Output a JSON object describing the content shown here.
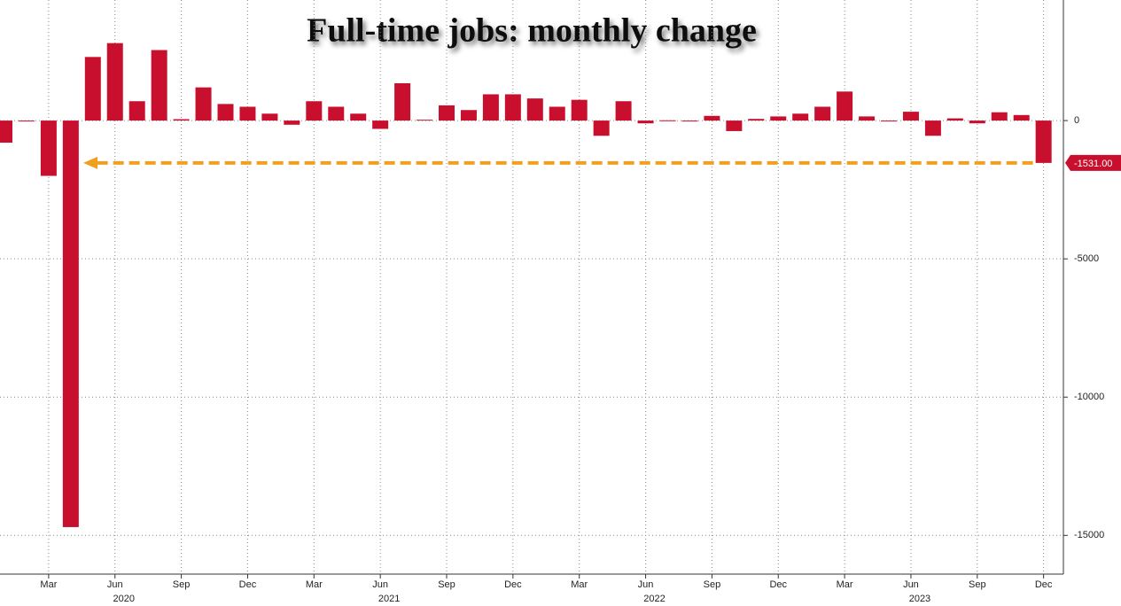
{
  "chart_data": {
    "type": "bar",
    "title": "Full-time jobs: monthly change",
    "categories": [
      null,
      null,
      "Mar",
      null,
      null,
      "Jun",
      null,
      null,
      "Sep",
      null,
      null,
      "Dec",
      null,
      null,
      "Mar",
      null,
      null,
      "Jun",
      null,
      null,
      "Sep",
      null,
      null,
      "Dec",
      null,
      null,
      "Mar",
      null,
      null,
      "Jun",
      null,
      null,
      "Sep",
      null,
      null,
      "Dec",
      null,
      null,
      "Mar",
      null,
      null,
      "Jun",
      null,
      null,
      "Sep",
      null,
      null,
      "Dec"
    ],
    "years": [
      "2020",
      "2021",
      "2022",
      "2023"
    ],
    "values": [
      -800,
      -20,
      -2000,
      -14700,
      2300,
      2800,
      700,
      2550,
      50,
      1200,
      600,
      500,
      250,
      -150,
      700,
      500,
      250,
      -300,
      1350,
      30,
      550,
      380,
      950,
      950,
      800,
      500,
      750,
      -550,
      700,
      -100,
      10,
      -10,
      170,
      -380,
      60,
      150,
      250,
      500,
      1050,
      150,
      -10,
      320,
      -550,
      80,
      -100,
      300,
      200,
      -1531
    ],
    "value_labels": [
      null,
      null,
      null,
      null,
      null,
      null,
      null,
      null,
      null,
      null,
      null,
      null,
      null,
      null,
      null,
      null,
      null,
      null,
      null,
      null,
      null,
      null,
      null,
      null,
      null,
      null,
      null,
      null,
      null,
      null,
      null,
      null,
      null,
      null,
      null,
      null,
      null,
      null,
      null,
      null,
      null,
      null,
      null,
      null,
      null,
      null,
      null,
      "-1531.00"
    ],
    "color": "#c8102e",
    "annotation_color": "#f0a020",
    "ylim": [
      -16400,
      4360
    ],
    "yticks": [
      0,
      -5000,
      -10000,
      -15000
    ],
    "grid": true
  }
}
